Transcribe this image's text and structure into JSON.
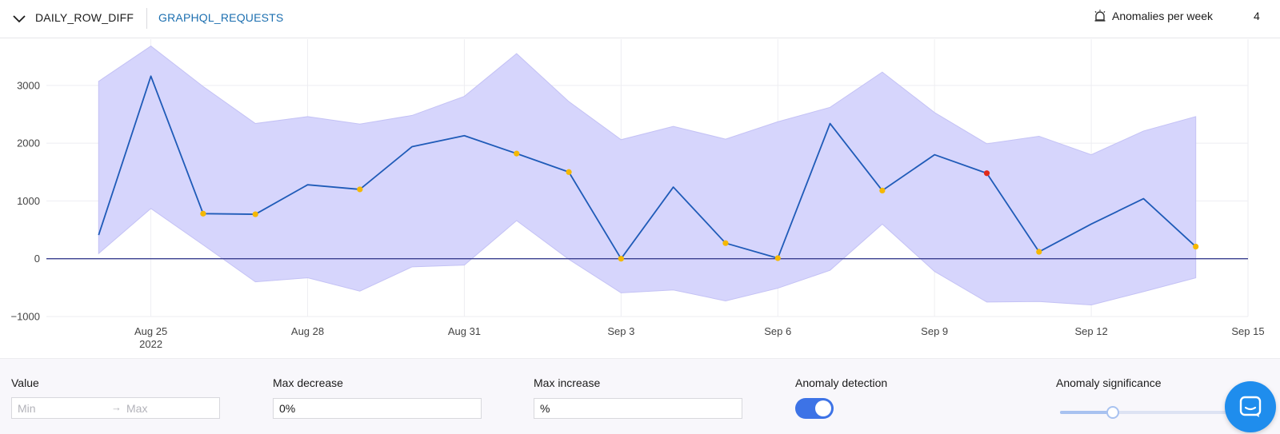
{
  "header": {
    "metric_name": "DAILY_ROW_DIFF",
    "table_name": "GRAPHQL_REQUESTS",
    "anomalies_label": "Anomalies per week",
    "anomalies_count": "4"
  },
  "colors": {
    "line": "#1f5bb8",
    "band": "#d6d5fc",
    "band_edge": "#c4c2f5",
    "zero_line": "#3a3f8f",
    "anomaly_point": "#f5b800",
    "anomaly_point_critical": "#e02b1b",
    "table_link": "#1c6fb0",
    "toggle_on": "#3d73e6",
    "chat_button": "#1f8ded"
  },
  "chart_data": {
    "type": "line",
    "x_axis_type": "date",
    "x": [
      "2022-08-24",
      "2022-08-25",
      "2022-08-26",
      "2022-08-27",
      "2022-08-28",
      "2022-08-29",
      "2022-08-30",
      "2022-08-31",
      "2022-09-01",
      "2022-09-02",
      "2022-09-03",
      "2022-09-04",
      "2022-09-05",
      "2022-09-06",
      "2022-09-07",
      "2022-09-08",
      "2022-09-09",
      "2022-09-10",
      "2022-09-11",
      "2022-09-12",
      "2022-09-13",
      "2022-09-14"
    ],
    "y": [
      410,
      3160,
      780,
      770,
      1280,
      1200,
      1940,
      2130,
      1820,
      1500,
      0,
      1240,
      270,
      10,
      2340,
      1180,
      1800,
      1480,
      120,
      600,
      1040,
      210
    ],
    "band_upper": [
      3070,
      3680,
      2980,
      2340,
      2460,
      2330,
      2480,
      2810,
      3550,
      2720,
      2060,
      2290,
      2070,
      2370,
      2620,
      3230,
      2530,
      1990,
      2120,
      1800,
      2210,
      2460
    ],
    "band_lower": [
      90,
      870,
      240,
      -400,
      -330,
      -560,
      -140,
      -110,
      660,
      -10,
      -590,
      -540,
      -730,
      -510,
      -200,
      600,
      -220,
      -750,
      -740,
      -800,
      -570,
      -330
    ],
    "anomalies": [
      {
        "x": "2022-08-26",
        "y": 780,
        "level": "warning"
      },
      {
        "x": "2022-08-27",
        "y": 770,
        "level": "warning"
      },
      {
        "x": "2022-08-29",
        "y": 1200,
        "level": "warning"
      },
      {
        "x": "2022-09-01",
        "y": 1820,
        "level": "warning"
      },
      {
        "x": "2022-09-02",
        "y": 1500,
        "level": "warning"
      },
      {
        "x": "2022-09-03",
        "y": 0,
        "level": "warning"
      },
      {
        "x": "2022-09-05",
        "y": 270,
        "level": "warning"
      },
      {
        "x": "2022-09-06",
        "y": 10,
        "level": "warning"
      },
      {
        "x": "2022-09-08",
        "y": 1180,
        "level": "warning"
      },
      {
        "x": "2022-09-10",
        "y": 1480,
        "level": "critical"
      },
      {
        "x": "2022-09-11",
        "y": 120,
        "level": "warning"
      },
      {
        "x": "2022-09-14",
        "y": 210,
        "level": "warning"
      }
    ],
    "xticks": [
      {
        "x": "2022-08-25",
        "label": "Aug 25",
        "sublabel": "2022"
      },
      {
        "x": "2022-08-28",
        "label": "Aug 28"
      },
      {
        "x": "2022-08-31",
        "label": "Aug 31"
      },
      {
        "x": "2022-09-03",
        "label": "Sep 3"
      },
      {
        "x": "2022-09-06",
        "label": "Sep 6"
      },
      {
        "x": "2022-09-09",
        "label": "Sep 9"
      },
      {
        "x": "2022-09-12",
        "label": "Sep 12"
      },
      {
        "x": "2022-09-15",
        "label": "Sep 15"
      }
    ],
    "yticks": [
      3000,
      2000,
      1000,
      0,
      -1000
    ],
    "ytick_labels": [
      "3000",
      "2000",
      "1000",
      "0",
      "−1000"
    ],
    "xlim": [
      "2022-08-23",
      "2022-09-15"
    ],
    "ylim": [
      -1000,
      3800
    ],
    "grid": true,
    "title": "",
    "xlabel": "",
    "ylabel": ""
  },
  "controls": {
    "value_label": "Value",
    "min_placeholder": "Min",
    "max_placeholder": "Max",
    "range_arrow": "→",
    "max_decrease_label": "Max decrease",
    "max_decrease_value": "0%",
    "max_increase_label": "Max increase",
    "max_increase_value": "%",
    "anomaly_detection_label": "Anomaly detection",
    "anomaly_detection_on": true,
    "anomaly_significance_label": "Anomaly significance",
    "anomaly_significance_level": 0.3
  }
}
